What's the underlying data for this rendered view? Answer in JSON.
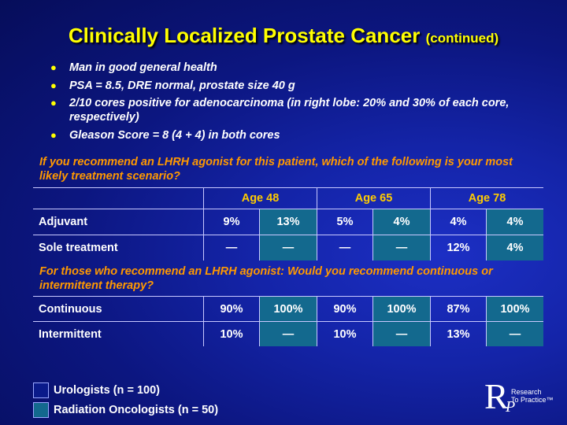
{
  "title": {
    "main": "Clinically Localized Prostate Cancer",
    "sub": "(continued)"
  },
  "bullets": [
    "Man in good general health",
    "PSA = 8.5, DRE normal, prostate size 40 g",
    "2/10 cores positive for adenocarcinoma (in right lobe: 20% and 30% of each core, respectively)",
    "Gleason Score = 8 (4 + 4) in both cores"
  ],
  "question1": "If you recommend an LHRH agonist for this patient, which of the following is your most likely treatment scenario?",
  "question2": "For those who recommend an LHRH agonist: Would you recommend continuous or intermittent therapy?",
  "ages": [
    "Age 48",
    "Age 65",
    "Age 78"
  ],
  "table1": [
    {
      "label": "Adjuvant",
      "values": [
        "9%",
        "13%",
        "5%",
        "4%",
        "4%",
        "4%"
      ]
    },
    {
      "label": "Sole treatment",
      "values": [
        "—",
        "—",
        "—",
        "—",
        "12%",
        "4%"
      ]
    }
  ],
  "table2": [
    {
      "label": "Continuous",
      "values": [
        "90%",
        "100%",
        "90%",
        "100%",
        "87%",
        "100%"
      ]
    },
    {
      "label": "Intermittent",
      "values": [
        "10%",
        "—",
        "10%",
        "—",
        "13%",
        "—"
      ]
    }
  ],
  "legend": [
    {
      "label": "Urologists  (n = 100)",
      "color": "#0a1a8a"
    },
    {
      "label": "Radiation Oncologists  (n = 50)",
      "color": "#13698e"
    }
  ],
  "logo": {
    "letter_r": "R",
    "letter_p": "P",
    "line1": "Research",
    "line2": "To Practice™"
  },
  "colors": {
    "title": "#ffff00",
    "question": "#ff9900",
    "age_header": "#ffcc00",
    "radonc_cell": "#13698e"
  }
}
